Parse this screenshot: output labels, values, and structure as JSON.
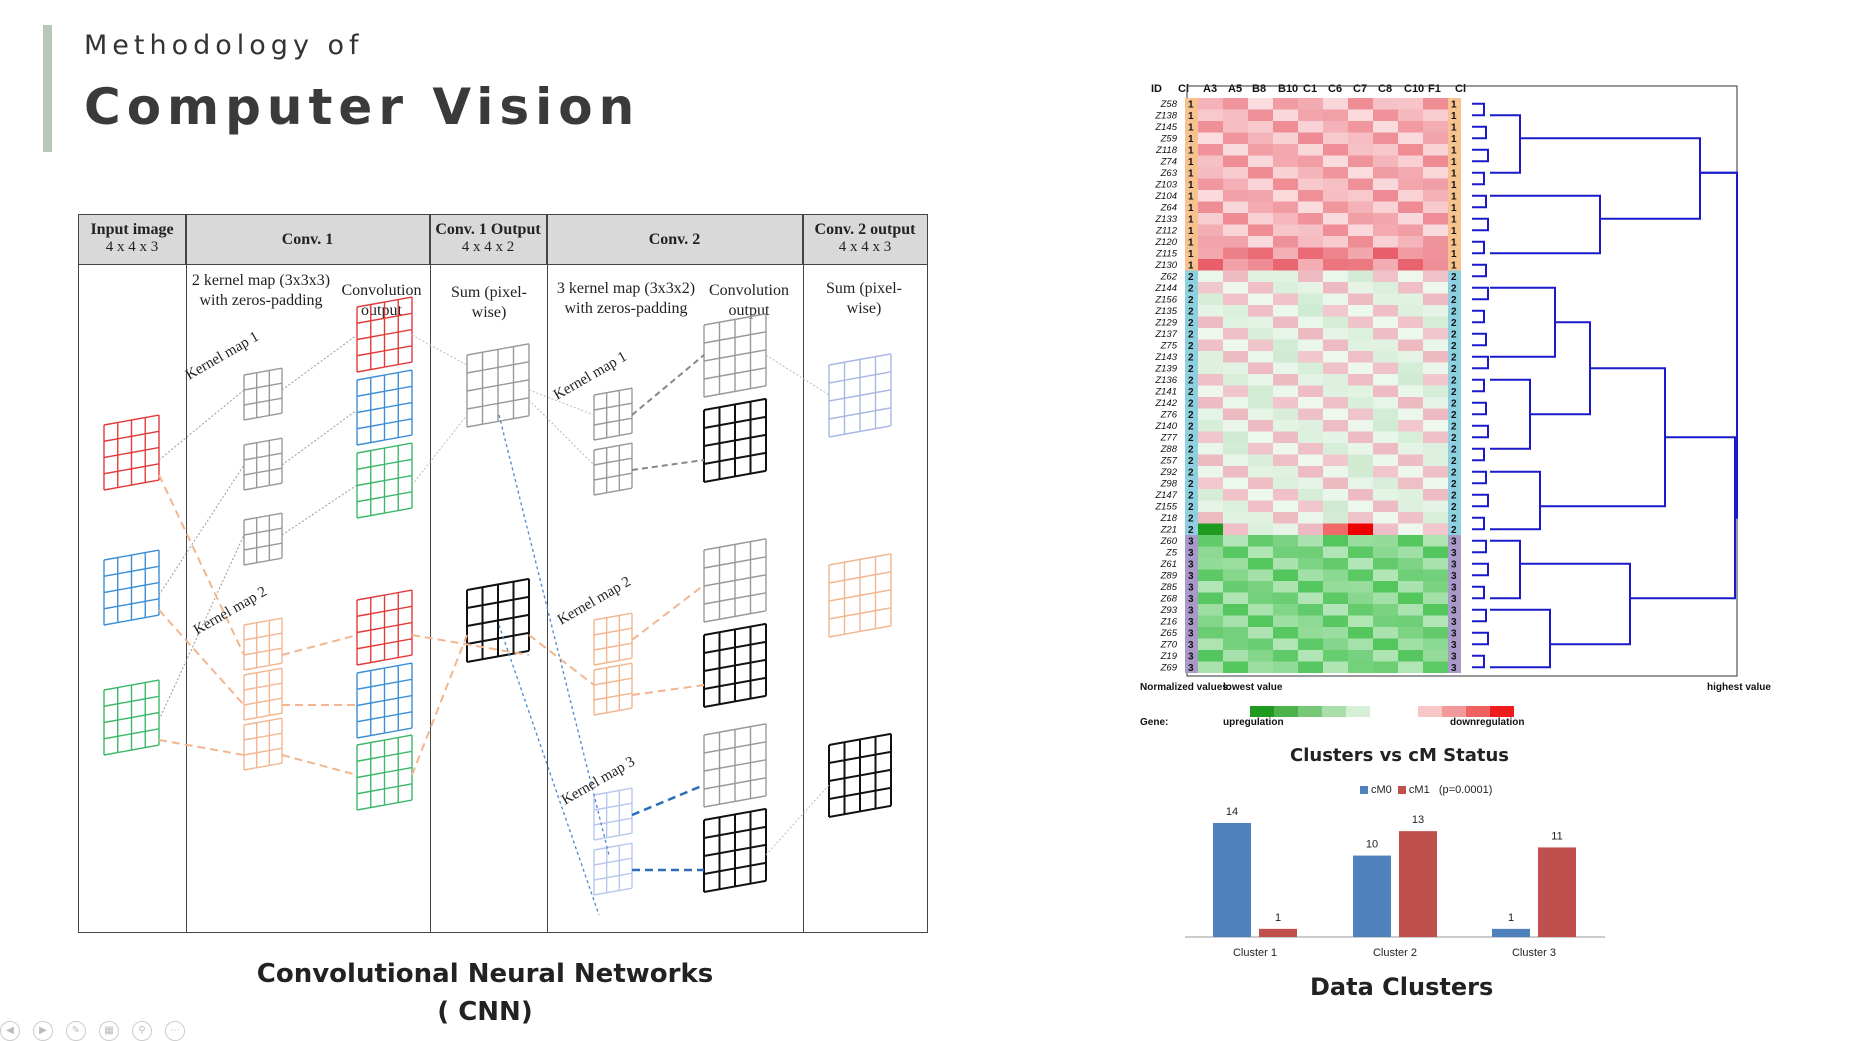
{
  "header": {
    "subtitle": "Methodology of",
    "title": "Computer Vision"
  },
  "cnn_figure": {
    "columns": [
      {
        "title": "Input image",
        "sub": "4 x 4 x 3"
      },
      {
        "title": "Conv. 1",
        "sub": ""
      },
      {
        "title": "Conv. 1 Output",
        "sub": "4 x 4 x 2"
      },
      {
        "title": "Conv. 2",
        "sub": ""
      },
      {
        "title": "Conv. 2 output",
        "sub": "4 x 4 x 3"
      }
    ],
    "notes": {
      "kernel1": "2 kernel map (3x3x3) with zeros-padding",
      "conv_out1": "Convolution output",
      "sum1": "Sum (pixel-wise)",
      "kernel2": "3 kernel map (3x3x2) with zeros-padding",
      "conv_out2": "Convolution output",
      "sum2": "Sum (pixel-wise)",
      "km1": "Kernel map 1",
      "km2": "Kernel map 2",
      "km1b": "Kernel map 1",
      "km2b": "Kernel map 2",
      "km3b": "Kernel map 3"
    },
    "caption_line1": "Convolutional Neural Networks",
    "caption_line2": "( CNN)"
  },
  "heatmap": {
    "columns": [
      "ID",
      "Cl",
      "A3",
      "A5",
      "B8",
      "B10",
      "C1",
      "C6",
      "C7",
      "C8",
      "C10",
      "F1",
      "Cl"
    ],
    "rows": [
      {
        "id": "Z58",
        "cl": "1"
      },
      {
        "id": "Z138",
        "cl": "1"
      },
      {
        "id": "Z145",
        "cl": "1"
      },
      {
        "id": "Z59",
        "cl": "1"
      },
      {
        "id": "Z118",
        "cl": "1"
      },
      {
        "id": "Z74",
        "cl": "1"
      },
      {
        "id": "Z63",
        "cl": "1"
      },
      {
        "id": "Z103",
        "cl": "1"
      },
      {
        "id": "Z104",
        "cl": "1"
      },
      {
        "id": "Z64",
        "cl": "1"
      },
      {
        "id": "Z133",
        "cl": "1"
      },
      {
        "id": "Z112",
        "cl": "1"
      },
      {
        "id": "Z120",
        "cl": "1"
      },
      {
        "id": "Z115",
        "cl": "1"
      },
      {
        "id": "Z130",
        "cl": "1"
      },
      {
        "id": "Z62",
        "cl": "2"
      },
      {
        "id": "Z144",
        "cl": "2"
      },
      {
        "id": "Z156",
        "cl": "2"
      },
      {
        "id": "Z135",
        "cl": "2"
      },
      {
        "id": "Z129",
        "cl": "2"
      },
      {
        "id": "Z137",
        "cl": "2"
      },
      {
        "id": "Z75",
        "cl": "2"
      },
      {
        "id": "Z143",
        "cl": "2"
      },
      {
        "id": "Z139",
        "cl": "2"
      },
      {
        "id": "Z136",
        "cl": "2"
      },
      {
        "id": "Z141",
        "cl": "2"
      },
      {
        "id": "Z142",
        "cl": "2"
      },
      {
        "id": "Z76",
        "cl": "2"
      },
      {
        "id": "Z140",
        "cl": "2"
      },
      {
        "id": "Z77",
        "cl": "2"
      },
      {
        "id": "Z88",
        "cl": "2"
      },
      {
        "id": "Z57",
        "cl": "2"
      },
      {
        "id": "Z92",
        "cl": "2"
      },
      {
        "id": "Z98",
        "cl": "2"
      },
      {
        "id": "Z147",
        "cl": "2"
      },
      {
        "id": "Z155",
        "cl": "2"
      },
      {
        "id": "Z18",
        "cl": "2"
      },
      {
        "id": "Z21",
        "cl": "2"
      },
      {
        "id": "Z60",
        "cl": "3"
      },
      {
        "id": "Z5",
        "cl": "3"
      },
      {
        "id": "Z61",
        "cl": "3"
      },
      {
        "id": "Z89",
        "cl": "3"
      },
      {
        "id": "Z85",
        "cl": "3"
      },
      {
        "id": "Z68",
        "cl": "3"
      },
      {
        "id": "Z93",
        "cl": "3"
      },
      {
        "id": "Z16",
        "cl": "3"
      },
      {
        "id": "Z65",
        "cl": "3"
      },
      {
        "id": "Z70",
        "cl": "3"
      },
      {
        "id": "Z19",
        "cl": "3"
      },
      {
        "id": "Z69",
        "cl": "3"
      }
    ],
    "legend": {
      "normalized": "Normalized values:",
      "lowest": "lowest value",
      "highest": "highest value",
      "gene": "Gene:",
      "up": "upregulation",
      "down": "downregulation"
    },
    "colors": {
      "cluster1": "#f6c28f",
      "cluster2": "#8fd0e0",
      "cluster3": "#a899c8",
      "dendro": "#1a1acc"
    }
  },
  "chart_data": {
    "type": "bar",
    "title": "Clusters vs cM Status",
    "categories": [
      "Cluster 1",
      "Cluster 2",
      "Cluster 3"
    ],
    "series": [
      {
        "name": "cM0",
        "values": [
          14,
          10,
          1
        ],
        "color": "#4f81bd"
      },
      {
        "name": "cM1",
        "values": [
          1,
          13,
          11
        ],
        "color": "#c0504d"
      }
    ],
    "annotation": "(p=0.0001)",
    "ylim": [
      0,
      14
    ],
    "grid": false,
    "legend": "top"
  },
  "data_caption": "Data Clusters"
}
